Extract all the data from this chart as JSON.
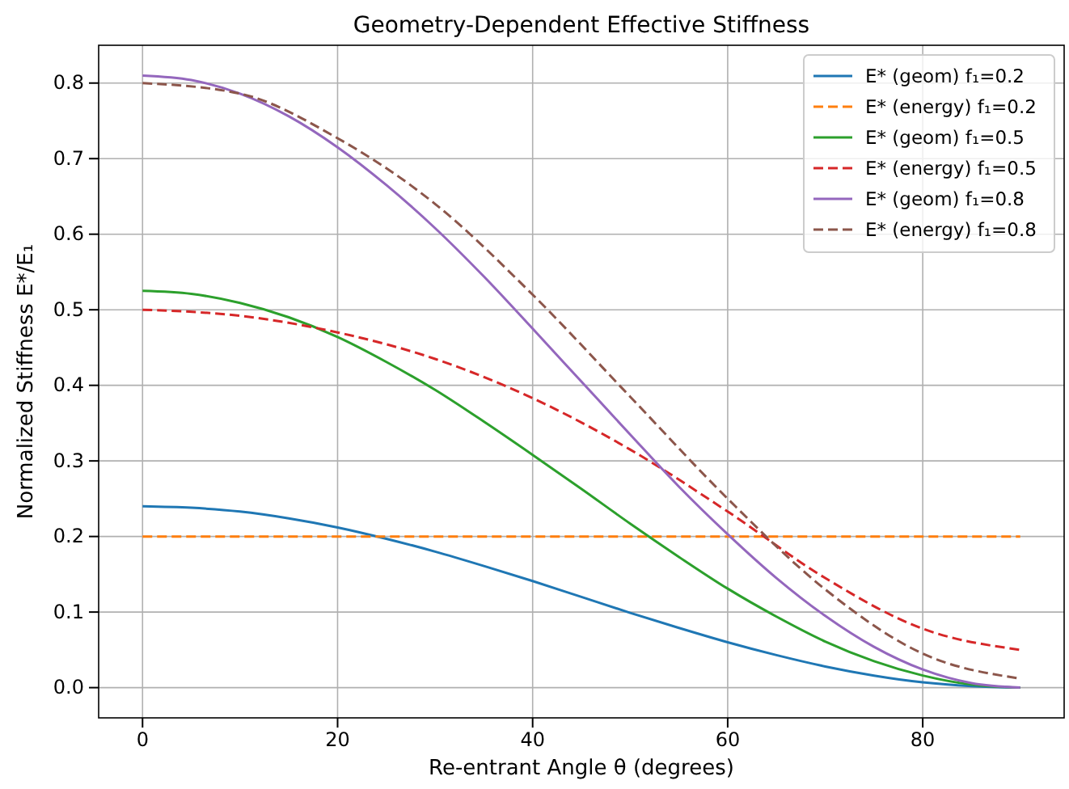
{
  "chart_data": {
    "type": "line",
    "title": "Geometry-Dependent Effective Stiffness",
    "xlabel": "Re-entrant Angle θ (degrees)",
    "ylabel": "Normalized Stiffness E*/E₁",
    "xlim": [
      -4.5,
      94.5
    ],
    "xticks": [
      0,
      20,
      40,
      60,
      80
    ],
    "ylim": [
      -0.04,
      0.85
    ],
    "yticks": [
      {
        "value": 0,
        "label": "0.0"
      },
      0.1,
      0.2,
      0.3,
      0.4,
      0.5,
      0.6,
      0.7,
      0.8
    ],
    "grid": true,
    "legend": "top right",
    "series": [
      {
        "name": "E* (geom) f₁=0.2",
        "color": "#1f77b4",
        "line_style": "solid",
        "x": [
          0,
          5,
          10,
          15,
          20,
          25,
          30,
          35,
          40,
          45,
          50,
          55,
          60,
          65,
          70,
          75,
          80,
          85,
          90
        ],
        "values": [
          0.24,
          0.238,
          0.233,
          0.224,
          0.212,
          0.197,
          0.18,
          0.161,
          0.141,
          0.12,
          0.099,
          0.079,
          0.06,
          0.043,
          0.028,
          0.016,
          0.007,
          0.002,
          0
        ]
      },
      {
        "name": "E* (energy) f₁=0.2",
        "color": "#ff7f0e",
        "line_style": "dashed",
        "x": [
          0,
          90
        ],
        "values": [
          0.2,
          0.2
        ]
      },
      {
        "name": "E* (geom) f₁=0.5",
        "color": "#2ca02c",
        "line_style": "solid",
        "x": [
          0,
          5,
          10,
          15,
          20,
          25,
          30,
          35,
          40,
          45,
          50,
          55,
          60,
          65,
          70,
          75,
          80,
          85,
          90
        ],
        "values": [
          0.525,
          0.521,
          0.509,
          0.49,
          0.464,
          0.431,
          0.394,
          0.352,
          0.308,
          0.263,
          0.217,
          0.173,
          0.131,
          0.094,
          0.061,
          0.035,
          0.016,
          0.004,
          0
        ]
      },
      {
        "name": "E* (energy) f₁=0.5",
        "color": "#d62728",
        "line_style": "dashed",
        "x": [
          0,
          10,
          20,
          30,
          40,
          50,
          60,
          70,
          80,
          90
        ],
        "values": [
          0.5,
          0.492,
          0.47,
          0.435,
          0.383,
          0.315,
          0.233,
          0.145,
          0.078,
          0.05
        ]
      },
      {
        "name": "E* (geom) f₁=0.8",
        "color": "#9467bd",
        "line_style": "solid",
        "x": [
          0,
          5,
          10,
          15,
          20,
          25,
          30,
          35,
          40,
          45,
          50,
          55,
          60,
          65,
          70,
          75,
          80,
          85,
          90
        ],
        "values": [
          0.81,
          0.804,
          0.786,
          0.756,
          0.715,
          0.665,
          0.608,
          0.544,
          0.475,
          0.405,
          0.335,
          0.266,
          0.203,
          0.145,
          0.095,
          0.054,
          0.024,
          0.006,
          0
        ]
      },
      {
        "name": "E* (energy) f₁=0.8",
        "color": "#8c564b",
        "line_style": "dashed",
        "x": [
          0,
          10,
          20,
          30,
          40,
          50,
          60,
          70,
          80,
          90
        ],
        "values": [
          0.8,
          0.786,
          0.727,
          0.64,
          0.52,
          0.385,
          0.25,
          0.13,
          0.045,
          0.012
        ]
      }
    ]
  }
}
